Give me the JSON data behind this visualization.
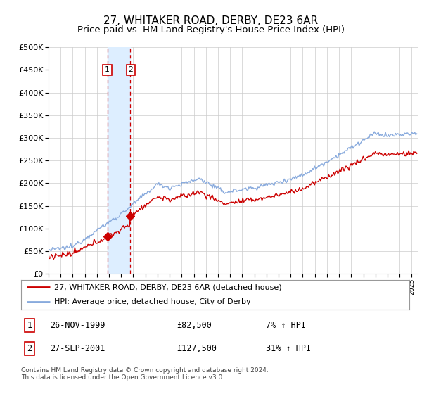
{
  "title": "27, WHITAKER ROAD, DERBY, DE23 6AR",
  "subtitle": "Price paid vs. HM Land Registry's House Price Index (HPI)",
  "ylim": [
    0,
    500000
  ],
  "yticks": [
    0,
    50000,
    100000,
    150000,
    200000,
    250000,
    300000,
    350000,
    400000,
    450000,
    500000
  ],
  "xmin": 1995.0,
  "xmax": 2025.5,
  "transaction1_date": 1999.9,
  "transaction1_price": 82500,
  "transaction2_date": 2001.73,
  "transaction2_price": 127500,
  "transaction1_label": "1",
  "transaction2_label": "2",
  "line1_color": "#cc0000",
  "line2_color": "#88aadd",
  "vline_color_dashed": "#cc0000",
  "vband_color": "#ddeeff",
  "legend_label1": "27, WHITAKER ROAD, DERBY, DE23 6AR (detached house)",
  "legend_label2": "HPI: Average price, detached house, City of Derby",
  "table_row1": [
    "1",
    "26-NOV-1999",
    "£82,500",
    "7% ↑ HPI"
  ],
  "table_row2": [
    "2",
    "27-SEP-2001",
    "£127,500",
    "31% ↑ HPI"
  ],
  "footer": "Contains HM Land Registry data © Crown copyright and database right 2024.\nThis data is licensed under the Open Government Licence v3.0.",
  "background_color": "#ffffff",
  "grid_color": "#cccccc"
}
